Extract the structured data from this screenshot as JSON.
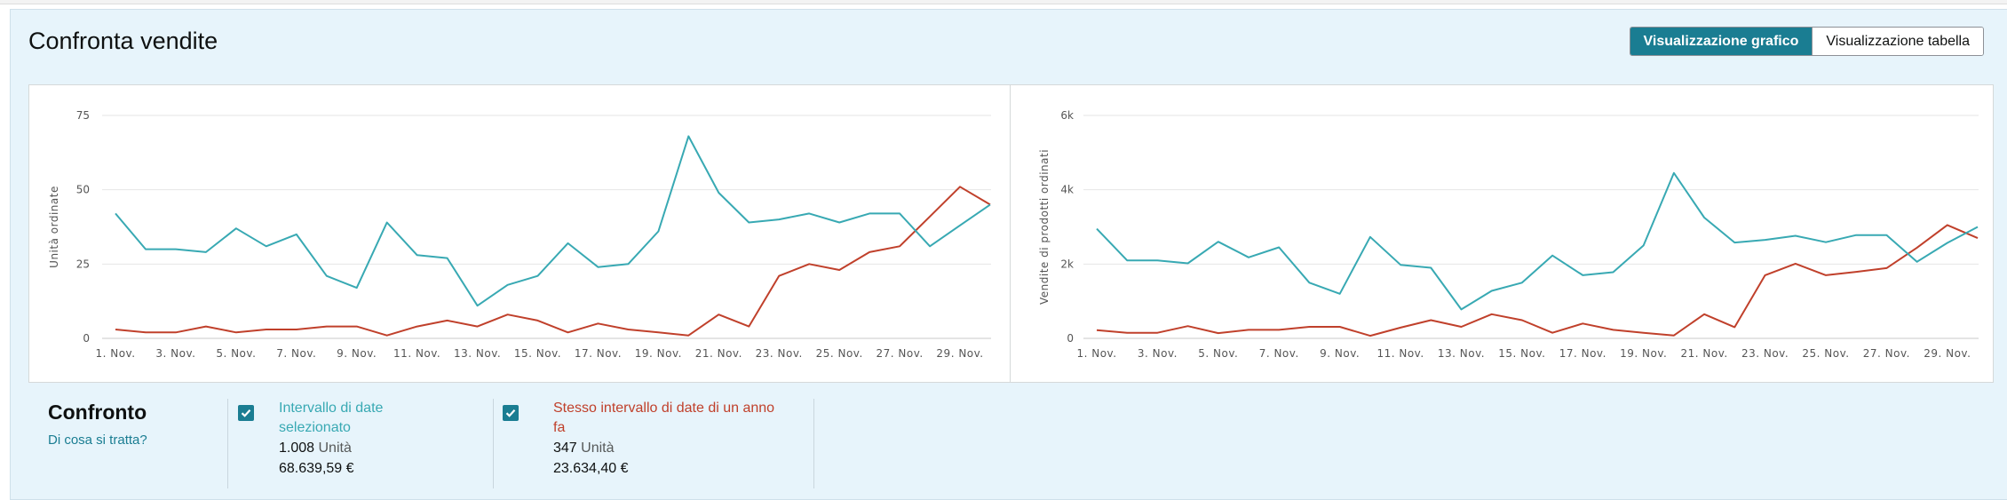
{
  "header": {
    "title": "Confronta vendite",
    "toggle_chart": "Visualizzazione grafico",
    "toggle_table": "Visualizzazione tabella"
  },
  "colors": {
    "current": "#38a9b3",
    "previous": "#c0402b",
    "accent": "#1a7d92"
  },
  "chart_data": [
    {
      "type": "line",
      "ylabel": "Unità ordinate",
      "ylim": [
        0,
        75
      ],
      "yticks": [
        0,
        25,
        50,
        75
      ],
      "ytick_labels": [
        "0",
        "25",
        "50",
        "75"
      ],
      "x": [
        1,
        2,
        3,
        4,
        5,
        6,
        7,
        8,
        9,
        10,
        11,
        12,
        13,
        14,
        15,
        16,
        17,
        18,
        19,
        20,
        21,
        22,
        23,
        24,
        25,
        26,
        27,
        28,
        29,
        30
      ],
      "xtick_values": [
        1,
        3,
        5,
        7,
        9,
        11,
        13,
        15,
        17,
        19,
        21,
        23,
        25,
        27,
        29
      ],
      "xtick_labels": [
        "1. Nov.",
        "3. Nov.",
        "5. Nov.",
        "7. Nov.",
        "9. Nov.",
        "11. Nov.",
        "13. Nov.",
        "15. Nov.",
        "17. Nov.",
        "19. Nov.",
        "21. Nov.",
        "23. Nov.",
        "25. Nov.",
        "27. Nov.",
        "29. Nov."
      ],
      "grid": true,
      "series": [
        {
          "key": "current",
          "values": [
            42,
            30,
            30,
            29,
            37,
            31,
            35,
            21,
            17,
            39,
            28,
            27,
            11,
            18,
            21,
            32,
            24,
            25,
            36,
            68,
            49,
            39,
            40,
            42,
            39,
            42,
            42,
            31,
            38,
            45
          ]
        },
        {
          "key": "previous",
          "values": [
            3,
            2,
            2,
            4,
            2,
            3,
            3,
            4,
            4,
            1,
            4,
            6,
            4,
            8,
            6,
            2,
            5,
            3,
            2,
            1,
            8,
            4,
            21,
            25,
            23,
            29,
            31,
            41,
            51,
            45
          ]
        }
      ]
    },
    {
      "type": "line",
      "ylabel": "Vendite di prodotti ordinati",
      "ylim": [
        0,
        6000
      ],
      "yticks": [
        0,
        2000,
        4000,
        6000
      ],
      "ytick_labels": [
        "0",
        "2k",
        "4k",
        "6k"
      ],
      "x": [
        1,
        2,
        3,
        4,
        5,
        6,
        7,
        8,
        9,
        10,
        11,
        12,
        13,
        14,
        15,
        16,
        17,
        18,
        19,
        20,
        21,
        22,
        23,
        24,
        25,
        26,
        27,
        28,
        29,
        30
      ],
      "xtick_values": [
        1,
        3,
        5,
        7,
        9,
        11,
        13,
        15,
        17,
        19,
        21,
        23,
        25,
        27,
        29
      ],
      "xtick_labels": [
        "1. Nov.",
        "3. Nov.",
        "5. Nov.",
        "7. Nov.",
        "9. Nov.",
        "11. Nov.",
        "13. Nov.",
        "15. Nov.",
        "17. Nov.",
        "19. Nov.",
        "21. Nov.",
        "23. Nov.",
        "25. Nov.",
        "27. Nov.",
        "29. Nov."
      ],
      "grid": true,
      "series": [
        {
          "key": "current",
          "values": [
            2950,
            2100,
            2100,
            2020,
            2600,
            2180,
            2450,
            1500,
            1200,
            2730,
            1980,
            1900,
            780,
            1280,
            1500,
            2230,
            1700,
            1780,
            2500,
            4450,
            3250,
            2580,
            2650,
            2760,
            2590,
            2780,
            2780,
            2060,
            2570,
            3000
          ]
        },
        {
          "key": "previous",
          "values": [
            220,
            150,
            150,
            330,
            140,
            230,
            230,
            310,
            310,
            70,
            290,
            490,
            310,
            650,
            490,
            150,
            400,
            230,
            150,
            80,
            650,
            300,
            1700,
            2010,
            1700,
            1790,
            1890,
            2440,
            3050,
            2700
          ]
        }
      ]
    }
  ],
  "comparison": {
    "title": "Confronto",
    "link": "Di cosa si tratta?",
    "current": {
      "label_line1": "Intervallo di date",
      "label_line2": "selezionato",
      "units_value": "1.008",
      "units_label": "Unità",
      "revenue": "68.639,59 €"
    },
    "previous": {
      "label_line1": "Stesso intervallo di date di un anno",
      "label_line2": "fa",
      "units_value": "347",
      "units_label": "Unità",
      "revenue": "23.634,40 €"
    }
  }
}
